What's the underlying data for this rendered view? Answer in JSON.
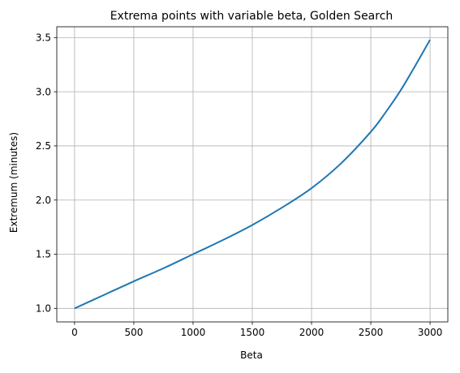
{
  "chart_data": {
    "type": "line",
    "title": "Extrema points with variable beta, Golden Search",
    "xlabel": "Beta",
    "ylabel": "Extremum (minutes)",
    "xlim": [
      -150,
      3150
    ],
    "ylim": [
      0.875,
      3.6
    ],
    "xticks": [
      0,
      500,
      1000,
      1500,
      2000,
      2500,
      3000
    ],
    "yticks": [
      1.0,
      1.5,
      2.0,
      2.5,
      3.0,
      3.5
    ],
    "ytick_labels": [
      "1.0",
      "1.5",
      "2.0",
      "2.5",
      "3.0",
      "3.5"
    ],
    "grid": true,
    "series": [
      {
        "color": "#1f77b4",
        "x": [
          0,
          250,
          500,
          750,
          1000,
          1250,
          1500,
          1750,
          2000,
          2250,
          2500,
          2625,
          2750,
          2875,
          3000
        ],
        "y": [
          1.0,
          1.125,
          1.25,
          1.37,
          1.5,
          1.63,
          1.77,
          1.93,
          2.11,
          2.34,
          2.63,
          2.81,
          3.01,
          3.24,
          3.48
        ]
      }
    ]
  }
}
